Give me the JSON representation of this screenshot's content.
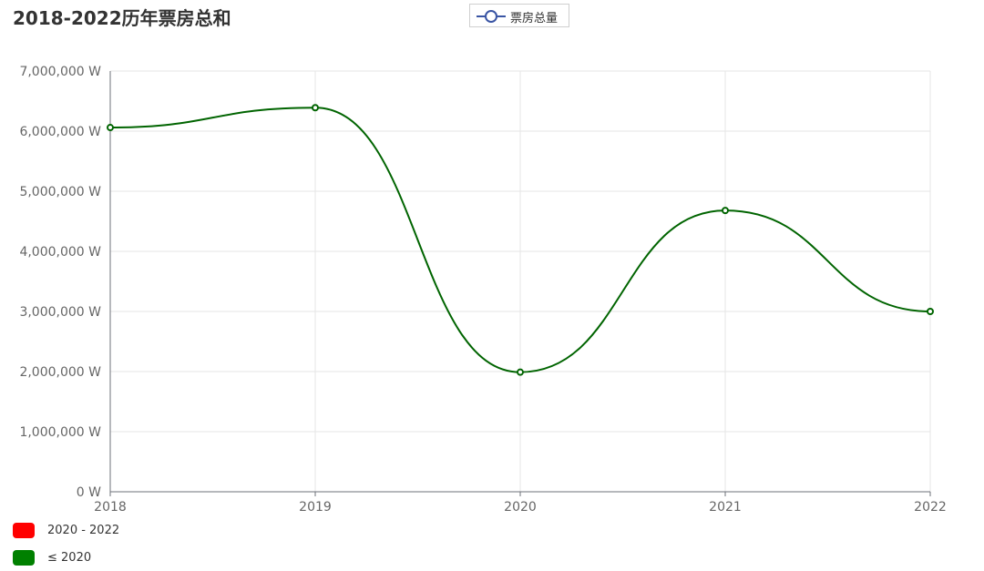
{
  "title": "2018-2022历年票房总和",
  "legend": {
    "label": "票房总量",
    "icon": "circle-line-icon",
    "color": "#3a55a4"
  },
  "visual_map": [
    {
      "label": "2020 - 2022",
      "color": "#ff0000"
    },
    {
      "label": "≤ 2020",
      "color": "#008000"
    }
  ],
  "chart_data": {
    "type": "line",
    "title": "2018-2022历年票房总和",
    "smooth": true,
    "categories": [
      "2018",
      "2019",
      "2020",
      "2021",
      "2022"
    ],
    "series": [
      {
        "name": "票房总量",
        "values": [
          6060000,
          6390000,
          1990000,
          4680000,
          3000000
        ],
        "color": "#006400"
      }
    ],
    "ylim": [
      0,
      7000000
    ],
    "yticks": [
      0,
      1000000,
      2000000,
      3000000,
      4000000,
      5000000,
      6000000,
      7000000
    ],
    "ytick_labels": [
      "0 W",
      "1,000,000 W",
      "2,000,000 W",
      "3,000,000 W",
      "4,000,000 W",
      "5,000,000 W",
      "6,000,000 W",
      "7,000,000 W"
    ],
    "grid": true
  }
}
